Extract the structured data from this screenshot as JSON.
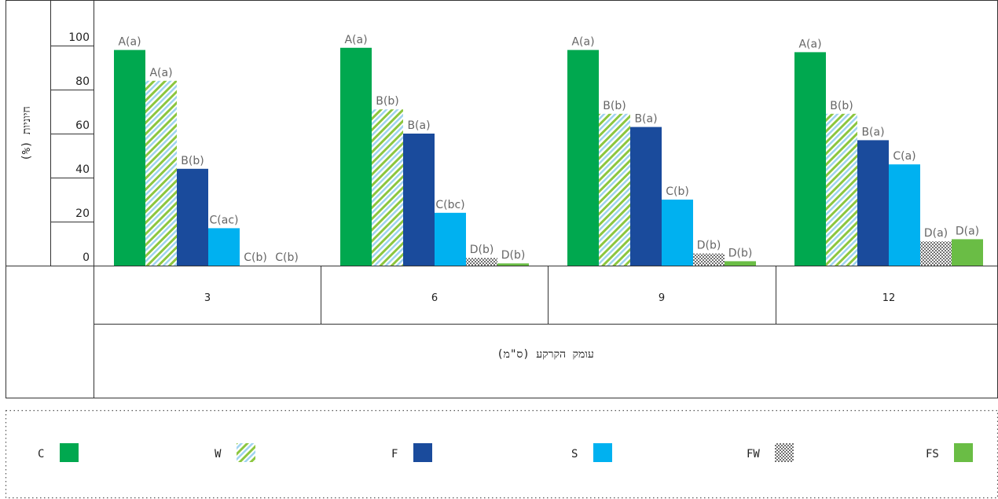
{
  "chart_data": {
    "type": "bar",
    "ylabel": "חיוניות (%)",
    "xlabel": "עומק הקרקע (ס\"מ)",
    "ylim": [
      0,
      100
    ],
    "yticks": [
      0,
      20,
      40,
      60,
      80,
      100
    ],
    "categories": [
      "3",
      "6",
      "9",
      "12"
    ],
    "series": [
      {
        "name": "C",
        "values": [
          98,
          99,
          98,
          97
        ],
        "labels": [
          "A(a)",
          "A(a)",
          "A(a)",
          "A(a)"
        ],
        "color": "#00a84f",
        "pattern": "solid"
      },
      {
        "name": "W",
        "values": [
          84,
          71,
          69,
          69
        ],
        "labels": [
          "A(a)",
          "B(b)",
          "B(b)",
          "B(b)"
        ],
        "color": "#8cc63f",
        "pattern": "hatch"
      },
      {
        "name": "F",
        "values": [
          44,
          60,
          63,
          57
        ],
        "labels": [
          "B(b)",
          "B(a)",
          "B(a)",
          "B(a)"
        ],
        "color": "#1a4b9c",
        "pattern": "solid"
      },
      {
        "name": "S",
        "values": [
          17,
          24,
          30,
          46
        ],
        "labels": [
          "C(ac)",
          "C(bc)",
          "C(b)",
          "C(a)"
        ],
        "color": "#00b1f0",
        "pattern": "solid"
      },
      {
        "name": "FW",
        "values": [
          0,
          3.5,
          5.5,
          11
        ],
        "labels": [
          "C(b)",
          "D(b)",
          "D(b)",
          "D(a)"
        ],
        "color": "#777777",
        "pattern": "dots"
      },
      {
        "name": "FS",
        "values": [
          0,
          1,
          2,
          12
        ],
        "labels": [
          "C(b)",
          "D(b)",
          "D(b)",
          "D(a)"
        ],
        "color": "#6abd45",
        "pattern": "solid"
      }
    ],
    "legend": {
      "position": "bottom",
      "items": [
        "C",
        "W",
        "F",
        "S",
        "FW",
        "FS"
      ]
    },
    "grid": false
  }
}
